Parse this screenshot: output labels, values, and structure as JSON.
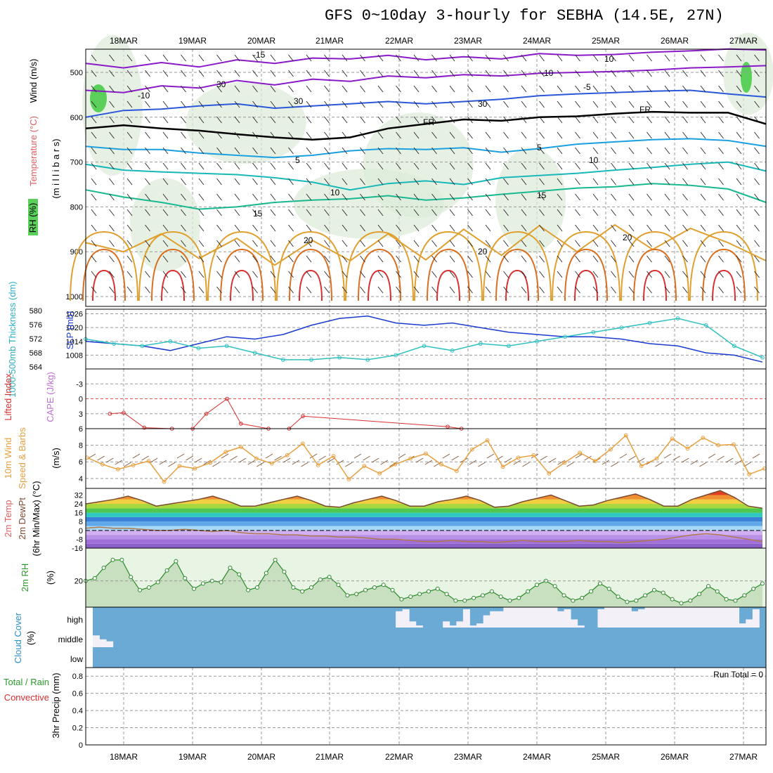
{
  "title": "GFS 0~10day 3-hourly for SEBHA (14.5E, 27N)",
  "colors": {
    "purple": "#8a1ac8",
    "blue": "#2a58d8",
    "lightblue": "#1aa0e0",
    "teal": "#18b8b8",
    "green": "#18b890",
    "orange": "#e0a030",
    "darkorange": "#d87020",
    "red": "#d83030",
    "cloud_blue": "#6aaad4",
    "rh_green": "#2a8a2a",
    "wind_orange": "#e8a040",
    "slp_blue": "#1a3ad0",
    "thick_cyan": "#30c0c0"
  },
  "chart_data": [
    {
      "panel": "upper-air",
      "type": "line",
      "ylabel_wind": "Wind (m/s)",
      "ylabel_temp": "Temperature (°C)",
      "ylabel_rh": "RH (%)",
      "ylabel_pres": "(m i l l i b a r s)",
      "y_ticks": [
        "500",
        "600",
        "700",
        "800",
        "900",
        "1000"
      ],
      "ylim": [
        1000,
        450
      ],
      "x_ticks": [
        "18MAR",
        "19MAR",
        "20MAR",
        "21MAR",
        "22MAR",
        "23MAR",
        "24MAR",
        "25MAR",
        "26MAR",
        "27MAR"
      ],
      "contour_labels": [
        "-15",
        "-10",
        "-10",
        "-5",
        "FR",
        "FR",
        "5",
        "5",
        "10",
        "10",
        "15",
        "15",
        "20",
        "20",
        "20",
        "30",
        "30",
        "30",
        "10"
      ],
      "isotherms": [
        {
          "name": "-15",
          "color": "#8a1ac8",
          "pressure": [
            480,
            490,
            478,
            488,
            472,
            480,
            468,
            470,
            462,
            472,
            465,
            470,
            458,
            462,
            460,
            455,
            452,
            448,
            450
          ]
        },
        {
          "name": "-10",
          "color": "#8a1ac8",
          "pressure": [
            540,
            545,
            530,
            535,
            518,
            528,
            515,
            520,
            508,
            512,
            505,
            508,
            502,
            500,
            498,
            495,
            490,
            488,
            485
          ]
        },
        {
          "name": "-5",
          "color": "#2a58d8",
          "pressure": [
            600,
            585,
            582,
            575,
            570,
            580,
            575,
            570,
            565,
            570,
            565,
            560,
            552,
            548,
            545,
            542,
            540,
            548,
            555
          ]
        },
        {
          "name": "FR",
          "color": "#000000",
          "pressure": [
            625,
            618,
            625,
            630,
            638,
            645,
            650,
            645,
            625,
            615,
            605,
            608,
            600,
            598,
            592,
            588,
            590,
            590,
            615
          ]
        },
        {
          "name": "5",
          "color": "#1aa0e0",
          "pressure": [
            665,
            672,
            672,
            680,
            685,
            690,
            685,
            675,
            670,
            672,
            668,
            678,
            670,
            660,
            655,
            650,
            648,
            652,
            665
          ]
        },
        {
          "name": "10",
          "color": "#18b8b8",
          "pressure": [
            705,
            718,
            722,
            725,
            728,
            735,
            745,
            762,
            748,
            742,
            750,
            735,
            730,
            725,
            718,
            712,
            705,
            700,
            720
          ]
        },
        {
          "name": "15",
          "color": "#18b890",
          "pressure": [
            762,
            778,
            790,
            805,
            800,
            790,
            785,
            782,
            775,
            785,
            780,
            772,
            765,
            758,
            755,
            748,
            752,
            760,
            790
          ]
        },
        {
          "name": "20",
          "color": "#e0a030",
          "pressure": [
            880,
            900,
            860,
            915,
            870,
            930,
            875,
            920,
            860,
            918,
            850,
            908,
            842,
            900,
            840,
            895,
            848,
            880,
            920
          ]
        }
      ]
    },
    {
      "panel": "slp-thickness",
      "type": "line",
      "ylabel_thick": "1000-500mb Thickness (dm)",
      "ylabel_slp": "SLP (mb)",
      "y_ticks_thick": [
        "580",
        "576",
        "572",
        "568",
        "564"
      ],
      "y_ticks_slp": [
        "1026",
        "1020",
        "1014",
        "1008"
      ],
      "ylim_slp": [
        1002,
        1028
      ],
      "series": [
        {
          "name": "SLP",
          "color": "#1a3ad0",
          "values": [
            1014,
            1013,
            1012,
            1010,
            1013,
            1016,
            1015,
            1017,
            1021,
            1024,
            1025,
            1022,
            1021,
            1022,
            1020,
            1018,
            1017,
            1016,
            1016,
            1015,
            1013,
            1012,
            1009,
            1008,
            1005
          ]
        },
        {
          "name": "Thickness",
          "color": "#30c0c0",
          "values": [
            1015,
            1013,
            1012,
            1014,
            1011,
            1012,
            1009,
            1006,
            1006,
            1007,
            1006,
            1008,
            1012,
            1010,
            1013,
            1012,
            1014,
            1016,
            1018,
            1020,
            1022,
            1024,
            1021,
            1012,
            1007
          ]
        }
      ]
    },
    {
      "panel": "stability",
      "type": "line",
      "ylabel_li": "Lifted Index",
      "ylabel_cape": "CAPE (J/kg)",
      "y_ticks": [
        "-3",
        "0",
        "3",
        "6"
      ],
      "ylim": [
        -6,
        6
      ],
      "series": [
        {
          "name": "Lifted Index",
          "color": "#d83030",
          "x": [
            0.4,
            0.6,
            0.9,
            1.3,
            1.6,
            1.8,
            2.1,
            2.3,
            2.7,
            3.0,
            3.2,
            5.3,
            5.5
          ],
          "values": [
            3.0,
            2.8,
            5.8,
            6.0,
            6.0,
            3.0,
            0.0,
            5.0,
            6.0,
            6.0,
            3.5,
            5.6,
            6.0
          ]
        }
      ]
    },
    {
      "panel": "wind-10m",
      "type": "line",
      "ylabel_wind": "10m Wind",
      "ylabel_speed": "Speed & Barbs",
      "ylabel_units": "(m/s)",
      "y_ticks": [
        "8",
        "6",
        "4"
      ],
      "ylim": [
        2.8,
        10
      ],
      "series": [
        {
          "name": "Speed",
          "color": "#e8a040",
          "values": [
            6.5,
            5.7,
            5.1,
            5.6,
            6.1,
            3.6,
            5.5,
            5.2,
            5.9,
            7.2,
            7.8,
            6.4,
            5.8,
            6.8,
            8.2,
            5.6,
            6.7,
            3.9,
            5.5,
            4.6,
            5.7,
            6.4,
            7.0,
            5.7,
            4.9,
            7.5,
            8.6,
            5.4,
            6.5,
            6.8,
            4.6,
            5.9,
            7.1,
            6.1,
            7.5,
            9.2,
            5.5,
            6.4,
            8.8,
            7.6,
            8.9,
            8.0,
            8.1,
            4.5,
            5.2
          ]
        }
      ]
    },
    {
      "panel": "temperature-2m",
      "type": "area",
      "ylabel_temp": "2m Temp",
      "ylabel_dew": "2m DewPt",
      "ylabel_minmax": "(6hr Min/Max) (°C)",
      "y_ticks": [
        "32",
        "24",
        "16",
        "8",
        "0",
        "-8",
        "-16"
      ],
      "ylim": [
        -16,
        38
      ],
      "series": [
        {
          "name": "Temp",
          "values": [
            24,
            26,
            28,
            31,
            27,
            22,
            24,
            26,
            28,
            31,
            27,
            22,
            22,
            25,
            28,
            31,
            27,
            22,
            21,
            25,
            28,
            31,
            27,
            22,
            22,
            26,
            28,
            31,
            27,
            21,
            22,
            26,
            29,
            32,
            27,
            22,
            23,
            27,
            30,
            33,
            28,
            22,
            22,
            28,
            32,
            36,
            30,
            22,
            20
          ]
        },
        {
          "name": "DewPt",
          "values": [
            2,
            3,
            2,
            2,
            1,
            0,
            0,
            1,
            0,
            -1,
            0,
            -2,
            -3,
            -3,
            -4,
            -4,
            -5,
            -5,
            -6,
            -6,
            -7,
            -8,
            -8,
            -9,
            -10,
            -10,
            -9,
            -10,
            -10,
            -11,
            -10,
            -9,
            -10,
            -10,
            -10,
            -9,
            -10,
            -10,
            -11,
            -10,
            -9,
            -8,
            -6,
            -4,
            -3,
            -4,
            -6,
            -8,
            -10
          ]
        }
      ]
    },
    {
      "panel": "rh-2m",
      "type": "area",
      "ylabel_rh": "2m RH",
      "ylabel_units": "(%)",
      "y_ticks": [
        "20"
      ],
      "ylim": [
        0,
        45
      ],
      "series": [
        {
          "name": "RH",
          "color": "#2a8a2a",
          "values": [
            20,
            22,
            30,
            36,
            36,
            23,
            13,
            15,
            19,
            28,
            35,
            22,
            14,
            18,
            20,
            19,
            30,
            25,
            13,
            15,
            26,
            36,
            27,
            15,
            12,
            15,
            21,
            23,
            17,
            9,
            10,
            13,
            15,
            17,
            13,
            6,
            8,
            10,
            12,
            14,
            10,
            5,
            5,
            7,
            9,
            12,
            8,
            5,
            7,
            12,
            17,
            20,
            16,
            9,
            5,
            7,
            12,
            18,
            14,
            8,
            4,
            5,
            9,
            13,
            11,
            6,
            3,
            5,
            10,
            16,
            12,
            6,
            5,
            9,
            14,
            18
          ]
        }
      ]
    },
    {
      "panel": "cloud-cover",
      "type": "heatmap",
      "ylabel_cloud": "Cloud Cover",
      "ylabel_units": "(%)",
      "row_labels": [
        "high",
        "middle",
        "low"
      ],
      "series": [
        {
          "name": "high",
          "values": [
            0,
            0,
            0,
            0,
            0,
            0,
            0,
            0,
            0,
            0,
            0,
            0,
            0,
            0,
            0,
            0,
            0,
            0,
            0,
            0,
            0,
            0,
            0,
            0,
            0,
            0,
            0,
            0,
            0,
            0,
            0,
            0,
            0,
            0,
            0,
            0,
            0,
            0,
            0,
            0,
            0,
            0,
            0,
            0,
            0,
            80,
            90,
            30,
            10,
            0,
            0,
            0,
            30,
            10,
            30,
            90,
            10,
            20,
            60,
            80,
            80,
            100,
            100,
            100,
            100,
            100,
            100,
            100,
            100,
            80,
            90,
            40,
            10,
            0,
            0,
            90,
            100,
            100,
            100,
            100,
            80,
            90,
            100,
            100,
            100,
            100,
            100,
            100,
            100,
            100,
            100,
            100,
            100,
            100,
            100,
            100,
            20,
            40,
            90,
            0
          ]
        },
        {
          "name": "middle",
          "values": [
            60,
            40,
            30,
            0,
            0,
            0,
            0,
            0,
            0,
            0,
            0,
            0,
            0,
            0,
            0,
            0,
            0,
            0,
            0,
            0,
            0,
            0,
            0,
            0,
            0,
            0,
            0,
            0,
            0,
            0,
            0,
            0,
            0,
            0,
            0,
            0,
            0,
            0,
            0,
            0,
            0,
            0,
            0,
            0,
            0,
            0,
            0,
            0,
            0,
            0,
            0,
            0,
            0,
            0,
            0,
            0,
            0,
            0,
            0,
            0,
            0,
            0,
            0,
            0,
            0,
            0,
            0,
            0,
            0,
            0,
            0,
            0,
            0,
            0,
            0,
            0,
            0,
            0,
            0,
            0,
            0,
            0,
            0,
            0,
            0,
            0,
            0,
            0,
            0,
            0,
            0,
            0,
            0,
            0,
            0,
            0,
            0,
            0,
            0,
            0
          ]
        },
        {
          "name": "low",
          "values": [
            0,
            0,
            0,
            0,
            0,
            0,
            0,
            0,
            0,
            0,
            0,
            0,
            0,
            0,
            0,
            0,
            0,
            0,
            0,
            0,
            0,
            0,
            0,
            0,
            0,
            0,
            0,
            0,
            0,
            0,
            0,
            0,
            0,
            0,
            0,
            0,
            0,
            0,
            0,
            0,
            0,
            0,
            0,
            0,
            0,
            0,
            0,
            0,
            0,
            0,
            0,
            0,
            0,
            0,
            0,
            0,
            0,
            0,
            0,
            0,
            0,
            0,
            0,
            0,
            0,
            0,
            0,
            0,
            0,
            0,
            0,
            0,
            0,
            0,
            0,
            0,
            0,
            0,
            0,
            0,
            0,
            0,
            0,
            0,
            0,
            0,
            0,
            0,
            0,
            0,
            0,
            0,
            0,
            0,
            0,
            0,
            0,
            0,
            0,
            0
          ]
        }
      ]
    },
    {
      "panel": "precip",
      "type": "bar",
      "ylabel_total": "Total / Rain",
      "ylabel_conv": "Convective",
      "ylabel_units": "3hr Precip (mm)",
      "y_ticks": [
        "0.8",
        "0.6",
        "0.4",
        "0.2",
        "0"
      ],
      "ylim": [
        0,
        0.9
      ],
      "annotation": "Run Total = 0",
      "values": []
    }
  ]
}
